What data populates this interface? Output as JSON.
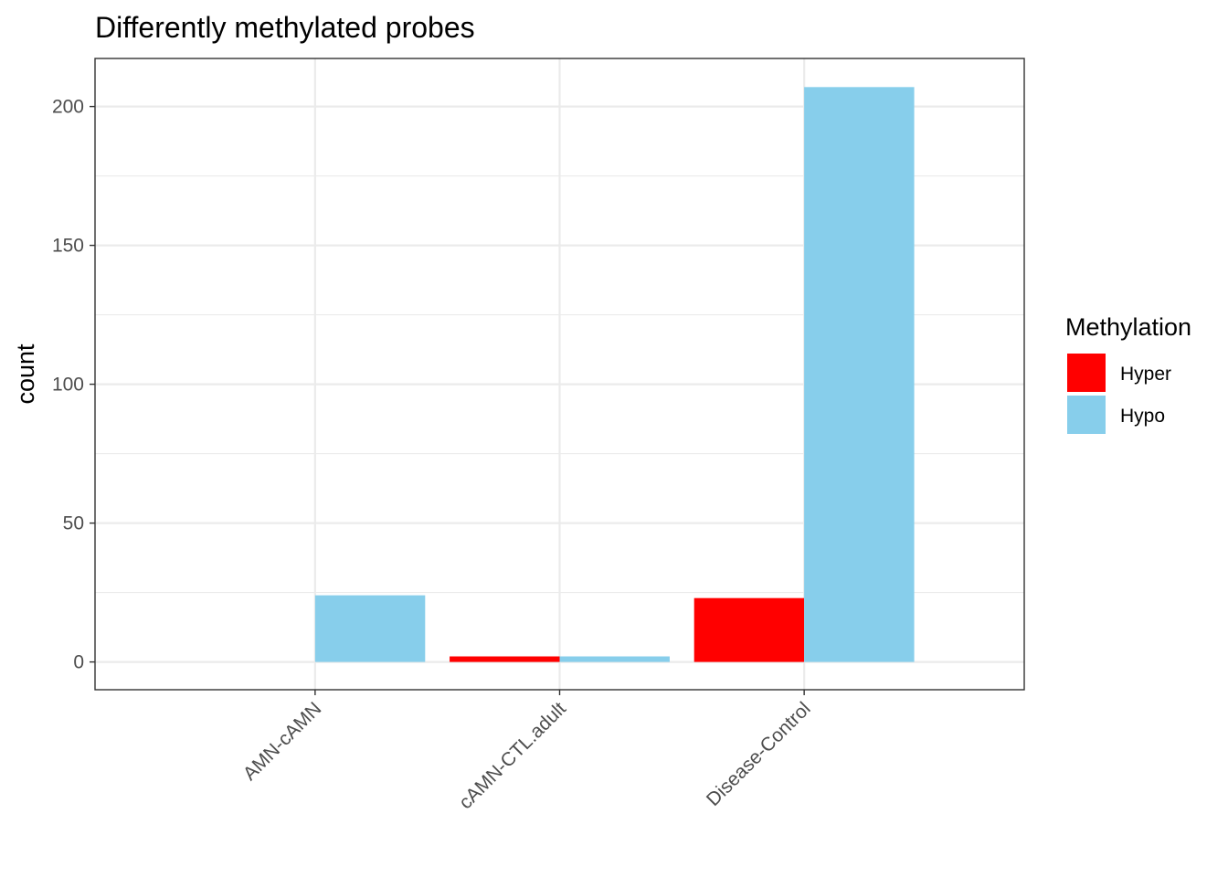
{
  "chart_data": {
    "type": "bar",
    "title": "Differently methylated probes",
    "xlabel": "",
    "ylabel": "count",
    "categories": [
      "AMN-cAMN",
      "cAMN-CTL.adult",
      "Disease-Control"
    ],
    "series": [
      {
        "name": "Hyper",
        "color": "#ff0000",
        "values": [
          0,
          2,
          23
        ]
      },
      {
        "name": "Hypo",
        "color": "#87ceeb",
        "values": [
          24,
          2,
          207
        ]
      }
    ],
    "ylim": [
      -10,
      217.3
    ],
    "yticks": [
      0,
      50,
      100,
      150,
      200
    ],
    "ytick_labels": [
      "0",
      "50",
      "100",
      "150",
      "200"
    ],
    "grid": true,
    "legend": {
      "title": "Methylation",
      "placement": "right"
    }
  }
}
